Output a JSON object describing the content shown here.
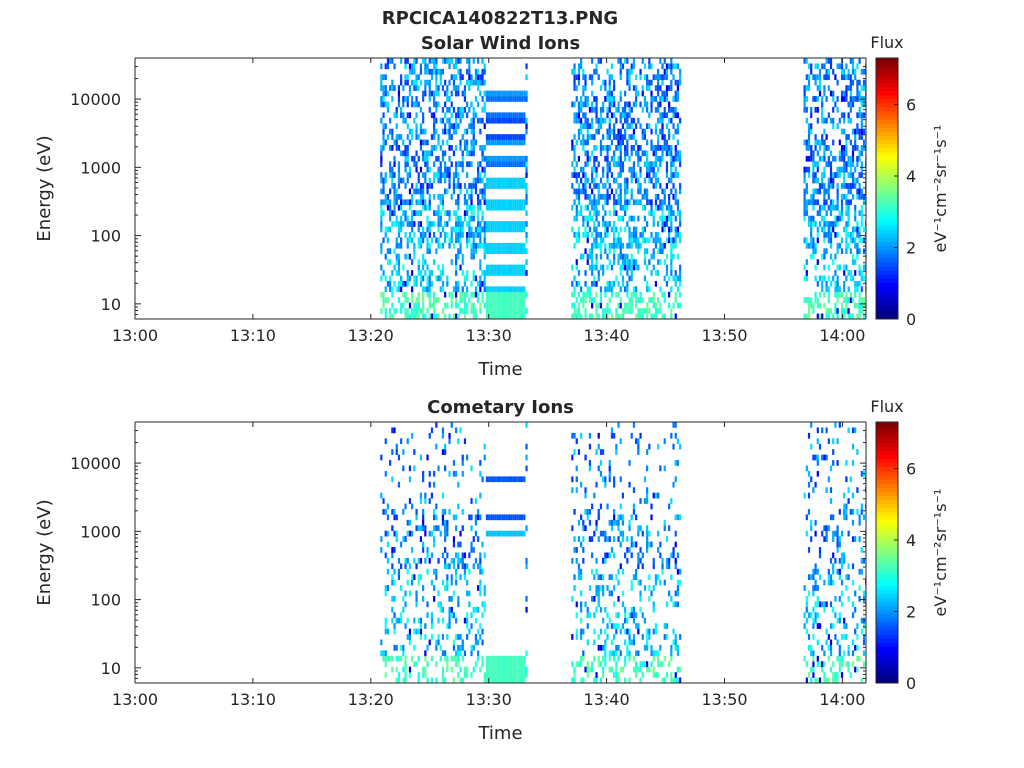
{
  "figure": {
    "title": "RPCICA140822T13.PNG"
  },
  "chart_data": [
    {
      "type": "heatmap",
      "title": "Solar Wind Ions",
      "xlabel": "Time",
      "ylabel": "Energy (eV)",
      "x_ticks": [
        "13:00",
        "13:10",
        "13:20",
        "13:30",
        "13:40",
        "13:50",
        "14:00"
      ],
      "x_range_minutes": [
        0,
        62
      ],
      "y_scale": "log",
      "y_range": [
        6,
        40000
      ],
      "y_ticks": [
        10,
        100,
        1000,
        10000
      ],
      "y_tick_labels": [
        "10",
        "100",
        "1000",
        "10000"
      ],
      "colorbar": {
        "title": "Flux",
        "label": "eV⁻¹cm⁻²sr⁻¹s⁻¹",
        "range": [
          0,
          7.3
        ],
        "ticks": [
          0,
          2,
          4,
          6
        ],
        "tick_labels": [
          "0",
          "2",
          "4",
          "6"
        ],
        "colormap": "jet"
      },
      "data_intervals_minutes": [
        [
          20.8,
          33.2
        ],
        [
          37.0,
          46.2
        ],
        [
          56.7,
          62.0
        ]
      ],
      "solid_band_interval_minutes": [
        29.8,
        33.2
      ]
    },
    {
      "type": "heatmap",
      "title": "Cometary Ions",
      "xlabel": "Time",
      "ylabel": "Energy (eV)",
      "x_ticks": [
        "13:00",
        "13:10",
        "13:20",
        "13:30",
        "13:40",
        "13:50",
        "14:00"
      ],
      "x_range_minutes": [
        0,
        62
      ],
      "y_scale": "log",
      "y_range": [
        6,
        40000
      ],
      "y_ticks": [
        10,
        100,
        1000,
        10000
      ],
      "y_tick_labels": [
        "10",
        "100",
        "1000",
        "10000"
      ],
      "colorbar": {
        "title": "Flux",
        "label": "eV⁻¹cm⁻²sr⁻¹s⁻¹",
        "range": [
          0,
          7.3
        ],
        "ticks": [
          0,
          2,
          4,
          6
        ],
        "tick_labels": [
          "0",
          "2",
          "4",
          "6"
        ],
        "colormap": "jet"
      },
      "data_intervals_minutes": [
        [
          20.8,
          33.2
        ],
        [
          37.0,
          46.2
        ],
        [
          56.7,
          62.0
        ]
      ],
      "solid_band_interval_minutes": [
        29.8,
        33.2
      ]
    }
  ]
}
